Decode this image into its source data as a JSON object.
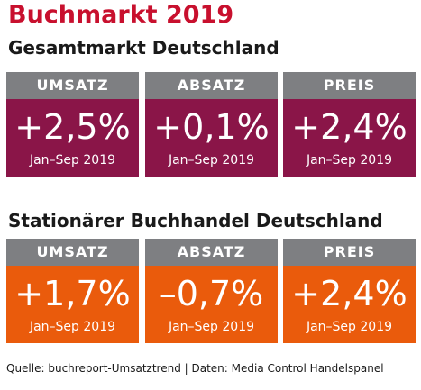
{
  "title": "Buchmarkt 2019",
  "colors": {
    "title": "#c8102e",
    "header_gray": "#7e7f82",
    "section1_box": "#8a1548",
    "section2_box": "#ea5b0c"
  },
  "sections": [
    {
      "title": "Gesamtmarkt Deutschland",
      "boxes": [
        {
          "label": "UMSATZ",
          "value": "+2,5%",
          "period": "Jan–Sep 2019"
        },
        {
          "label": "ABSATZ",
          "value": "+0,1%",
          "period": "Jan–Sep 2019"
        },
        {
          "label": "PREIS",
          "value": "+2,4%",
          "period": "Jan–Sep 2019"
        }
      ]
    },
    {
      "title": "Stationärer Buchhandel Deutschland",
      "boxes": [
        {
          "label": "UMSATZ",
          "value": "+1,7%",
          "period": "Jan–Sep 2019"
        },
        {
          "label": "ABSATZ",
          "value": "–0,7%",
          "period": "Jan–Sep 2019"
        },
        {
          "label": "PREIS",
          "value": "+2,4%",
          "period": "Jan–Sep 2019"
        }
      ]
    }
  ],
  "source": "Quelle: buchreport-Umsatztrend | Daten: Media Control Handelspanel"
}
